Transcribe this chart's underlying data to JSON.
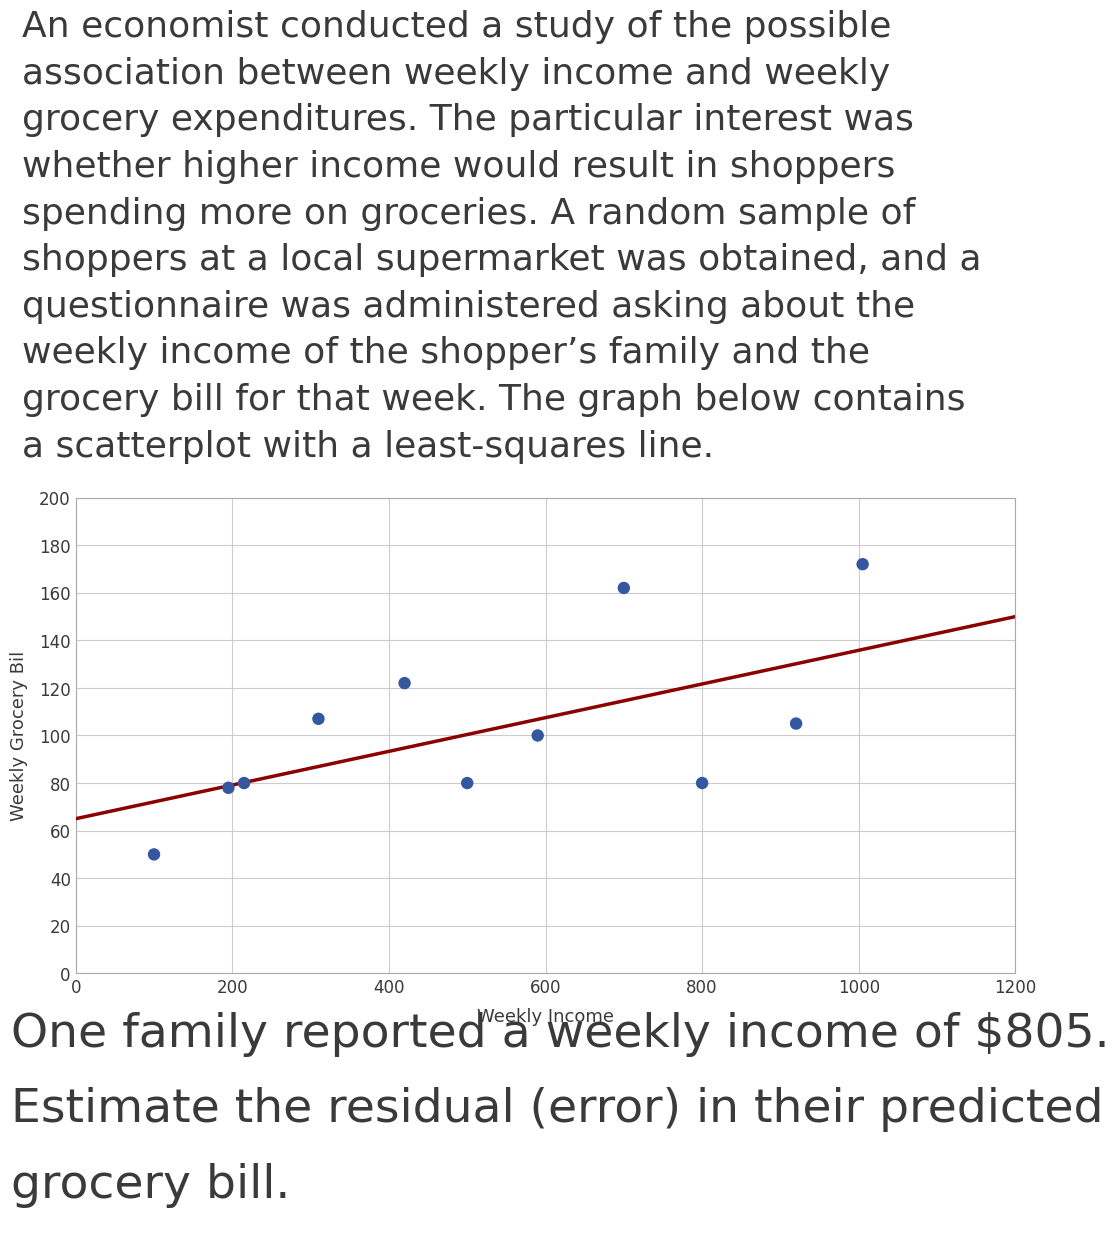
{
  "scatter_x": [
    100,
    195,
    215,
    310,
    420,
    500,
    590,
    700,
    800,
    920,
    1005
  ],
  "scatter_y": [
    50,
    78,
    80,
    107,
    122,
    80,
    100,
    162,
    80,
    105,
    172
  ],
  "dot_color": "#3457A0",
  "dot_size": 80,
  "line_x": [
    0,
    1200
  ],
  "line_y_intercept": 65,
  "line_slope": 0.0708,
  "line_color": "#8B0000",
  "line_width": 2.5,
  "xlabel": "Weekly Income",
  "ylabel": "Weekly Grocery Bil",
  "xlim": [
    0,
    1200
  ],
  "ylim": [
    0,
    200
  ],
  "xticks": [
    0,
    200,
    400,
    600,
    800,
    1000,
    1200
  ],
  "yticks": [
    0,
    20,
    40,
    60,
    80,
    100,
    120,
    140,
    160,
    180,
    200
  ],
  "grid_color": "#cccccc",
  "background_color": "#ffffff",
  "text_color": "#3a3a3a",
  "para_lines": [
    "An economist conducted a study of the possible",
    "association between weekly income and weekly",
    "grocery expenditures. The particular interest was",
    "whether higher income would result in shoppers",
    "spending more on groceries. A random sample of",
    "shoppers at a local supermarket was obtained, and a",
    "questionnaire was administered asking about the",
    "weekly income of the shopper’s family and the",
    "grocery bill for that week. The graph below contains",
    "a scatterplot with a least-squares line."
  ],
  "bottom_lines": [
    "One family reported a weekly income of $805.",
    "Estimate the residual (error) in their predicted",
    "grocery bill."
  ],
  "para_fontsize": 26,
  "bottom_fontsize": 34,
  "axis_label_fontsize": 13,
  "tick_fontsize": 12
}
